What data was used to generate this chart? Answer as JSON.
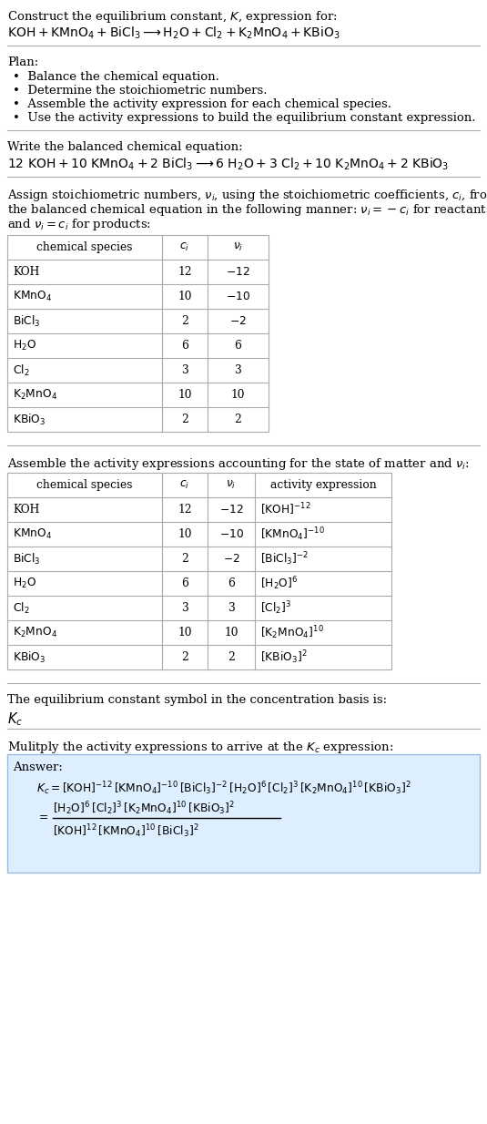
{
  "bg_color": "#ffffff",
  "text_color": "#000000",
  "title_line1": "Construct the equilibrium constant, $K$, expression for:",
  "title_line2": "$\\mathrm{KOH + KMnO_4 + BiCl_3 \\longrightarrow H_2O + Cl_2 + K_2MnO_4 + KBiO_3}$",
  "plan_header": "Plan:",
  "plan_items": [
    "Balance the chemical equation.",
    "Determine the stoichiometric numbers.",
    "Assemble the activity expression for each chemical species.",
    "Use the activity expressions to build the equilibrium constant expression."
  ],
  "balanced_header": "Write the balanced chemical equation:",
  "balanced_eq": "$\\mathrm{12\\ KOH + 10\\ KMnO_4 + 2\\ BiCl_3 \\longrightarrow 6\\ H_2O + 3\\ Cl_2 + 10\\ K_2MnO_4 + 2\\ KBiO_3}$",
  "stoich_intro": "Assign stoichiometric numbers, $\\nu_i$, using the stoichiometric coefficients, $c_i$, from\nthe balanced chemical equation in the following manner: $\\nu_i = -c_i$ for reactants\nand $\\nu_i = c_i$ for products:",
  "table1_headers": [
    "chemical species",
    "$c_i$",
    "$\\nu_i$"
  ],
  "table1_col1": [
    "KOH",
    "$\\mathrm{KMnO_4}$",
    "$\\mathrm{BiCl_3}$",
    "$\\mathrm{H_2O}$",
    "$\\mathrm{Cl_2}$",
    "$\\mathrm{K_2MnO_4}$",
    "$\\mathrm{KBiO_3}$"
  ],
  "table1_col2": [
    "12",
    "10",
    "2",
    "6",
    "3",
    "10",
    "2"
  ],
  "table1_col3": [
    "$-12$",
    "$-10$",
    "$-2$",
    "6",
    "3",
    "10",
    "2"
  ],
  "activity_header": "Assemble the activity expressions accounting for the state of matter and $\\nu_i$:",
  "table2_headers": [
    "chemical species",
    "$c_i$",
    "$\\nu_i$",
    "activity expression"
  ],
  "table2_col1": [
    "KOH",
    "$\\mathrm{KMnO_4}$",
    "$\\mathrm{BiCl_3}$",
    "$\\mathrm{H_2O}$",
    "$\\mathrm{Cl_2}$",
    "$\\mathrm{K_2MnO_4}$",
    "$\\mathrm{KBiO_3}$"
  ],
  "table2_col2": [
    "12",
    "10",
    "2",
    "6",
    "3",
    "10",
    "2"
  ],
  "table2_col3": [
    "$-12$",
    "$-10$",
    "$-2$",
    "6",
    "3",
    "10",
    "2"
  ],
  "table2_col4": [
    "$[\\mathrm{KOH}]^{-12}$",
    "$[\\mathrm{KMnO_4}]^{-10}$",
    "$[\\mathrm{BiCl_3}]^{-2}$",
    "$[\\mathrm{H_2O}]^{6}$",
    "$[\\mathrm{Cl_2}]^{3}$",
    "$[\\mathrm{K_2MnO_4}]^{10}$",
    "$[\\mathrm{KBiO_3}]^{2}$"
  ],
  "kc_header": "The equilibrium constant symbol in the concentration basis is:",
  "kc_symbol": "$K_c$",
  "multiply_header": "Mulitply the activity expressions to arrive at the $K_c$ expression:",
  "answer_label": "Answer:",
  "kc_expr1": "$K_c = [\\mathrm{KOH}]^{-12}\\,[\\mathrm{KMnO_4}]^{-10}\\,[\\mathrm{BiCl_3}]^{-2}\\,[\\mathrm{H_2O}]^{6}\\,[\\mathrm{Cl_2}]^{3}\\,[\\mathrm{K_2MnO_4}]^{10}\\,[\\mathrm{KBiO_3}]^{2}$",
  "kc_expr2a": "$[\\mathrm{H_2O}]^{6}\\,[\\mathrm{Cl_2}]^{3}\\,[\\mathrm{K_2MnO_4}]^{10}\\,[\\mathrm{KBiO_3}]^{2}$",
  "kc_expr2b": "$[\\mathrm{KOH}]^{12}\\,[\\mathrm{KMnO_4}]^{10}\\,[\\mathrm{BiCl_3}]^{2}$",
  "answer_box_color": "#ddeeff",
  "answer_box_edge": "#aabbcc",
  "grid_color": "#aaaaaa",
  "font_size": 9.5,
  "small_font": 8.8
}
